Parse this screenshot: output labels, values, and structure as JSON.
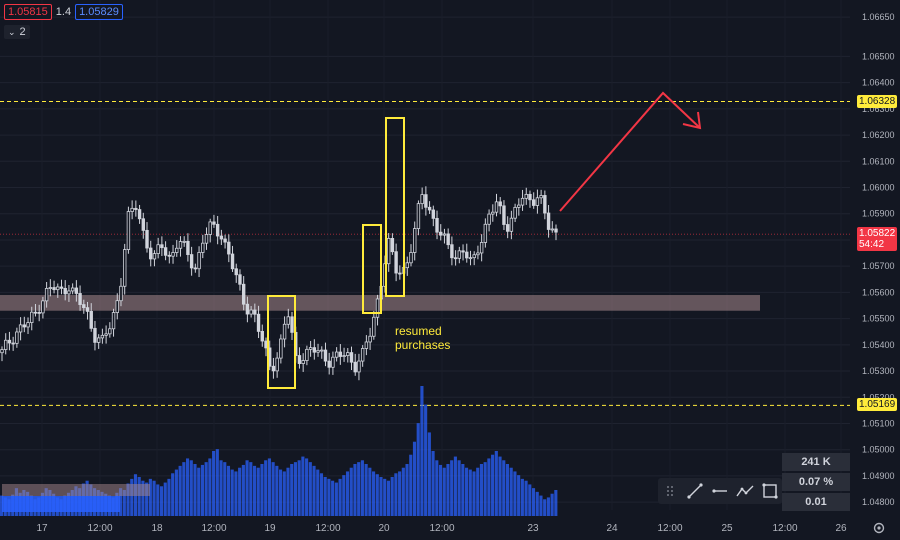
{
  "header": {
    "sell_price": "1.05815",
    "spread": "1.4",
    "buy_price": "1.05829",
    "layers_count": "2"
  },
  "annotation_text": [
    "resumed",
    "purchases"
  ],
  "axis": {
    "price_ticks": [
      "1.06650",
      "1.06500",
      "1.06400",
      "1.06300",
      "1.06200",
      "1.06100",
      "1.06000",
      "1.05900",
      "1.05800",
      "1.05700",
      "1.05600",
      "1.05500",
      "1.05400",
      "1.05300",
      "1.05200",
      "1.05100",
      "1.05000",
      "1.04900",
      "1.04800"
    ],
    "time_ticks": [
      "17",
      "12:00",
      "18",
      "12:00",
      "19",
      "12:00",
      "20",
      "12:00",
      "23",
      "24",
      "12:00",
      "25",
      "12:00",
      "26"
    ]
  },
  "levels": {
    "resistance": {
      "value": "1.06328",
      "color": "#ffeb3b"
    },
    "support": {
      "value": "1.05169",
      "color": "#ffeb3b"
    },
    "current": {
      "value": "1.05822",
      "timer": "54:42",
      "color": "#f23645"
    }
  },
  "drawing_tools": [
    "trendline-icon",
    "horizontal-ray-icon",
    "path-icon",
    "rectangle-select-icon"
  ],
  "stats": [
    "241 K",
    "0.07 %",
    "0.01"
  ],
  "chart_data": {
    "type": "candlestick",
    "y_range": [
      1.0477,
      1.067
    ],
    "zone": [
      1.0553,
      1.0559
    ],
    "price_path": [
      1.0537,
      1.0542,
      1.0546,
      1.0548,
      1.0552,
      1.0559,
      1.0562,
      1.056,
      1.0563,
      1.0557,
      1.0553,
      1.0544,
      1.0541,
      1.0548,
      1.056,
      1.0588,
      1.0593,
      1.0581,
      1.0572,
      1.0578,
      1.0573,
      1.058,
      1.0575,
      1.0569,
      1.0581,
      1.0585,
      1.0583,
      1.0575,
      1.0564,
      1.0555,
      1.0552,
      1.0541,
      1.0531,
      1.0537,
      1.0553,
      1.0535,
      1.0536,
      1.0538,
      1.0537,
      1.0534,
      1.0535,
      1.0537,
      1.0532,
      1.0536,
      1.0546,
      1.0561,
      1.0579,
      1.0568,
      1.0569,
      1.058,
      1.0598,
      1.0591,
      1.0583,
      1.0578,
      1.0574,
      1.0576,
      1.057,
      1.058,
      1.0589,
      1.0594,
      1.0585,
      1.059,
      1.0596,
      1.0595,
      1.0598,
      1.0585,
      1.0582
    ],
    "volume": [
      22,
      20,
      18,
      23,
      30,
      25,
      28,
      26,
      22,
      18,
      20,
      25,
      30,
      28,
      24,
      20,
      18,
      22,
      25,
      28,
      32,
      30,
      35,
      38,
      34,
      30,
      28,
      26,
      24,
      22,
      20,
      25,
      30,
      28,
      35,
      40,
      45,
      42,
      38,
      36,
      40,
      38,
      34,
      32,
      36,
      40,
      46,
      50,
      54,
      58,
      62,
      60,
      56,
      52,
      55,
      58,
      62,
      70,
      72,
      60,
      58,
      54,
      50,
      48,
      52,
      55,
      60,
      58,
      54,
      52,
      56,
      60,
      62,
      58,
      54,
      50,
      48,
      52,
      56,
      58,
      60,
      64,
      62,
      58,
      54,
      50,
      46,
      42,
      40,
      38,
      36,
      40,
      44,
      48,
      52,
      56,
      58,
      60,
      56,
      52,
      48,
      45,
      42,
      40,
      38,
      42,
      46,
      48,
      52,
      56,
      66,
      80,
      100,
      140,
      120,
      90,
      70,
      60,
      55,
      52,
      56,
      60,
      64,
      60,
      56,
      52,
      50,
      48,
      52,
      56,
      58,
      62,
      66,
      70,
      64,
      60,
      56,
      52,
      48,
      44,
      40,
      38,
      34,
      30,
      26,
      22,
      18,
      20,
      24,
      28
    ]
  }
}
